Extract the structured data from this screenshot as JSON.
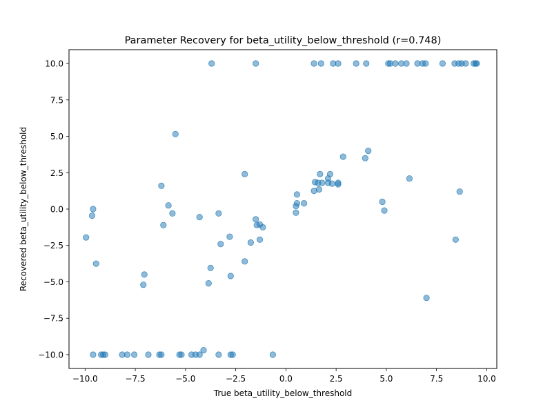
{
  "chart_data": {
    "type": "scatter",
    "title": "Parameter Recovery for beta_utility_below_threshold (r=0.748)",
    "xlabel": "True beta_utility_below_threshold",
    "ylabel": "Recovered beta_utility_below_threshold",
    "xlim": [
      -10.8,
      10.5
    ],
    "ylim": [
      -10.95,
      10.95
    ],
    "xticks": [
      -10.0,
      -7.5,
      -5.0,
      -2.5,
      0.0,
      2.5,
      5.0,
      7.5,
      10.0
    ],
    "xtick_labels": [
      "−10.0",
      "−7.5",
      "−5.0",
      "−2.5",
      "0.0",
      "2.5",
      "5.0",
      "7.5",
      "10.0"
    ],
    "yticks": [
      -10.0,
      -7.5,
      -5.0,
      -2.5,
      0.0,
      2.5,
      5.0,
      7.5,
      10.0
    ],
    "ytick_labels": [
      "−10.0",
      "−7.5",
      "−5.0",
      "−2.5",
      "0.0",
      "2.5",
      "5.0",
      "7.5",
      "10.0"
    ],
    "grid": false,
    "marker_color": "#1f77b4",
    "marker_alpha": 0.5,
    "points": [
      [
        -3.7,
        10.0
      ],
      [
        -1.5,
        10.0
      ],
      [
        1.4,
        10.0
      ],
      [
        1.75,
        10.0
      ],
      [
        2.35,
        10.0
      ],
      [
        2.6,
        10.0
      ],
      [
        3.5,
        10.0
      ],
      [
        4.0,
        10.0
      ],
      [
        5.1,
        10.0
      ],
      [
        5.2,
        10.0
      ],
      [
        5.45,
        10.0
      ],
      [
        5.75,
        10.0
      ],
      [
        6.0,
        10.0
      ],
      [
        6.55,
        10.0
      ],
      [
        6.8,
        10.0
      ],
      [
        6.95,
        10.0
      ],
      [
        7.8,
        10.0
      ],
      [
        8.4,
        10.0
      ],
      [
        8.6,
        10.0
      ],
      [
        8.75,
        10.0
      ],
      [
        8.95,
        10.0
      ],
      [
        9.35,
        10.0
      ],
      [
        9.45,
        10.0
      ],
      [
        9.5,
        10.0
      ],
      [
        -5.5,
        5.15
      ],
      [
        -6.2,
        1.6
      ],
      [
        -5.85,
        0.25
      ],
      [
        -5.65,
        -0.3
      ],
      [
        -6.1,
        -1.1
      ],
      [
        -9.6,
        0.0
      ],
      [
        -9.65,
        -0.45
      ],
      [
        -9.95,
        -1.95
      ],
      [
        -9.45,
        -3.75
      ],
      [
        -7.05,
        -4.5
      ],
      [
        -7.1,
        -5.2
      ],
      [
        -4.3,
        -0.55
      ],
      [
        -3.35,
        -0.3
      ],
      [
        -3.25,
        -2.4
      ],
      [
        -2.8,
        -1.9
      ],
      [
        -3.75,
        -4.05
      ],
      [
        -3.85,
        -5.1
      ],
      [
        -2.75,
        -4.6
      ],
      [
        -2.05,
        2.4
      ],
      [
        -2.05,
        -3.6
      ],
      [
        -1.75,
        -2.3
      ],
      [
        -1.5,
        -0.7
      ],
      [
        -1.45,
        -1.1
      ],
      [
        -1.3,
        -1.05
      ],
      [
        -1.15,
        -1.25
      ],
      [
        -1.3,
        -2.1
      ],
      [
        0.5,
        -0.25
      ],
      [
        0.5,
        0.2
      ],
      [
        0.55,
        0.4
      ],
      [
        0.55,
        1.0
      ],
      [
        0.9,
        0.4
      ],
      [
        1.4,
        1.25
      ],
      [
        1.45,
        1.85
      ],
      [
        1.6,
        1.8
      ],
      [
        1.65,
        1.35
      ],
      [
        1.7,
        2.4
      ],
      [
        1.8,
        1.8
      ],
      [
        2.1,
        2.1
      ],
      [
        2.1,
        1.8
      ],
      [
        2.2,
        2.4
      ],
      [
        2.3,
        1.75
      ],
      [
        2.6,
        1.7
      ],
      [
        2.6,
        1.8
      ],
      [
        2.85,
        3.6
      ],
      [
        3.95,
        3.5
      ],
      [
        4.1,
        4.0
      ],
      [
        4.8,
        0.5
      ],
      [
        4.9,
        -0.1
      ],
      [
        6.15,
        2.1
      ],
      [
        8.65,
        1.2
      ],
      [
        8.45,
        -2.1
      ],
      [
        7.0,
        -6.1
      ],
      [
        -9.6,
        -10.0
      ],
      [
        -9.2,
        -10.0
      ],
      [
        -9.1,
        -10.0
      ],
      [
        -9.0,
        -10.0
      ],
      [
        -8.15,
        -10.0
      ],
      [
        -7.9,
        -10.0
      ],
      [
        -7.55,
        -10.0
      ],
      [
        -6.85,
        -10.0
      ],
      [
        -6.3,
        -10.0
      ],
      [
        -6.2,
        -10.0
      ],
      [
        -5.3,
        -10.0
      ],
      [
        -5.2,
        -10.0
      ],
      [
        -4.7,
        -10.0
      ],
      [
        -4.5,
        -10.0
      ],
      [
        -4.3,
        -10.0
      ],
      [
        -4.1,
        -9.7
      ],
      [
        -3.35,
        -10.0
      ],
      [
        -2.75,
        -10.0
      ],
      [
        -2.65,
        -10.0
      ],
      [
        -0.65,
        -10.0
      ]
    ]
  }
}
